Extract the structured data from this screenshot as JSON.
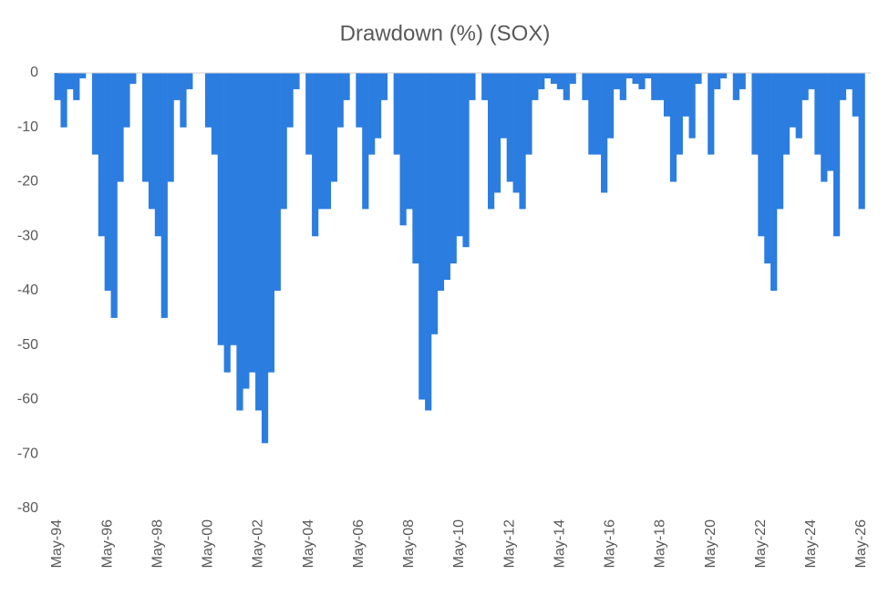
{
  "chart_data": {
    "type": "bar",
    "title": "Drawdown (%) (SOX)",
    "categories": [
      "May-94",
      null,
      null,
      null,
      null,
      null,
      null,
      null,
      "May-96",
      null,
      null,
      null,
      null,
      null,
      null,
      null,
      "May-98",
      null,
      null,
      null,
      null,
      null,
      null,
      null,
      "May-00",
      null,
      null,
      null,
      null,
      null,
      null,
      null,
      "May-02",
      null,
      null,
      null,
      null,
      null,
      null,
      null,
      "May-04",
      null,
      null,
      null,
      null,
      null,
      null,
      null,
      "May-06",
      null,
      null,
      null,
      null,
      null,
      null,
      null,
      "May-08",
      null,
      null,
      null,
      null,
      null,
      null,
      null,
      "May-10",
      null,
      null,
      null,
      null,
      null,
      null,
      null,
      "May-12",
      null,
      null,
      null,
      null,
      null,
      null,
      null,
      "May-14",
      null,
      null,
      null,
      null,
      null,
      null,
      null,
      "May-16",
      null,
      null,
      null,
      null,
      null,
      null,
      null,
      "May-18",
      null,
      null,
      null,
      null,
      null,
      null,
      null,
      "May-20",
      null,
      null,
      null,
      null,
      null,
      null,
      null,
      "May-22",
      null,
      null,
      null,
      null,
      null,
      null,
      null,
      "May-24",
      null,
      null,
      null,
      null,
      null,
      null,
      null,
      "May-26"
    ],
    "values": [
      -5,
      -10,
      -3,
      -5,
      -1,
      0,
      -15,
      -30,
      -40,
      -45,
      -20,
      -10,
      -2,
      0,
      -20,
      -25,
      -30,
      -45,
      -20,
      -5,
      -10,
      -3,
      0,
      0,
      -10,
      -15,
      -50,
      -55,
      -50,
      -62,
      -58,
      -55,
      -62,
      -68,
      -55,
      -40,
      -25,
      -10,
      -3,
      0,
      -15,
      -30,
      -25,
      -25,
      -20,
      -10,
      -5,
      0,
      -10,
      -25,
      -15,
      -12,
      -5,
      0,
      -15,
      -28,
      -25,
      -35,
      -60,
      -62,
      -48,
      -40,
      -38,
      -35,
      -30,
      -32,
      -5,
      0,
      -5,
      -25,
      -22,
      -12,
      -20,
      -22,
      -25,
      -15,
      -5,
      -3,
      -1,
      -2,
      -3,
      -5,
      -2,
      0,
      -5,
      -15,
      -15,
      -22,
      -12,
      -3,
      -5,
      -1,
      -2,
      -3,
      -1,
      -5,
      -5,
      -8,
      -20,
      -15,
      -8,
      -12,
      -2,
      0,
      -15,
      -3,
      -1,
      0,
      -5,
      -3,
      0,
      -15,
      -30,
      -35,
      -40,
      -25,
      -15,
      -10,
      -12,
      -5,
      -3,
      -15,
      -20,
      -18,
      -30,
      -5,
      -3,
      -8,
      -25
    ],
    "color": "#2b7de0",
    "ylim": [
      -80,
      0
    ],
    "yticks": [
      0,
      -10,
      -20,
      -30,
      -40,
      -50,
      -60,
      -70,
      -80
    ],
    "grid": false
  }
}
